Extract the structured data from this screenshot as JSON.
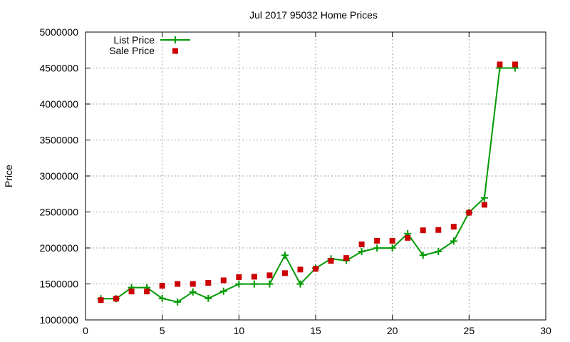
{
  "chart_data": {
    "type": "line",
    "title": "Jul 2017 95032 Home Prices",
    "xlabel": "",
    "ylabel": "Price",
    "xlim": [
      0,
      30
    ],
    "ylim": [
      1000000,
      5000000
    ],
    "x_ticks": [
      "0",
      "5",
      "10",
      "15",
      "20",
      "25",
      "30"
    ],
    "y_ticks": [
      "1000000",
      "1500000",
      "2000000",
      "2500000",
      "3000000",
      "3500000",
      "4000000",
      "4500000",
      "5000000"
    ],
    "grid": true,
    "legend_position": "top-left",
    "series": [
      {
        "name": "List Price",
        "style": "line-with-plus-markers",
        "color": "#009900",
        "x": [
          1,
          2,
          3,
          4,
          5,
          6,
          7,
          8,
          9,
          10,
          11,
          12,
          13,
          14,
          15,
          16,
          17,
          18,
          19,
          20,
          21,
          22,
          23,
          24,
          25,
          26,
          27,
          28
        ],
        "values": [
          1295000,
          1295000,
          1449000,
          1449000,
          1299000,
          1249000,
          1389000,
          1299000,
          1399000,
          1499000,
          1499000,
          1499000,
          1899000,
          1499000,
          1719000,
          1849000,
          1825000,
          1949000,
          1999000,
          1999000,
          2199000,
          1899000,
          1950000,
          2095000,
          2495000,
          2695000,
          4500000,
          4500000
        ]
      },
      {
        "name": "Sale Price",
        "style": "square-markers",
        "color": "#cc0000",
        "x": [
          1,
          2,
          3,
          4,
          5,
          6,
          7,
          8,
          9,
          10,
          11,
          12,
          13,
          14,
          15,
          16,
          17,
          18,
          19,
          20,
          21,
          22,
          23,
          24,
          25,
          26,
          27,
          28
        ],
        "values": [
          1275000,
          1295000,
          1395000,
          1395000,
          1475000,
          1500000,
          1500000,
          1515000,
          1550000,
          1595000,
          1600000,
          1620000,
          1650000,
          1700000,
          1710000,
          1820000,
          1860000,
          2050000,
          2100000,
          2100000,
          2140000,
          2245000,
          2250000,
          2295000,
          2490000,
          2600000,
          4550000,
          4550000
        ]
      }
    ]
  }
}
